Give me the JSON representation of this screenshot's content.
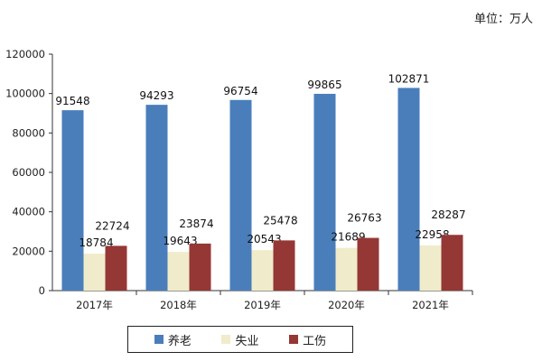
{
  "unit_note": "单位：万人",
  "chart_data": {
    "type": "bar",
    "categories": [
      "2017年",
      "2018年",
      "2019年",
      "2020年",
      "2021年"
    ],
    "series": [
      {
        "name": "养老",
        "color": "#4a7ebb",
        "values": [
          91548,
          94293,
          96754,
          99865,
          102871
        ]
      },
      {
        "name": "失业",
        "color": "#f0eccb",
        "values": [
          18784,
          19643,
          20543,
          21689,
          22958
        ]
      },
      {
        "name": "工伤",
        "color": "#953735",
        "values": [
          22724,
          23874,
          25478,
          26763,
          28287
        ]
      }
    ],
    "ylim": [
      0,
      120000
    ],
    "yticks": [
      "0",
      "20000",
      "40000",
      "60000",
      "80000",
      "100000",
      "120000"
    ],
    "grid": false,
    "legend_position": "bottom"
  }
}
